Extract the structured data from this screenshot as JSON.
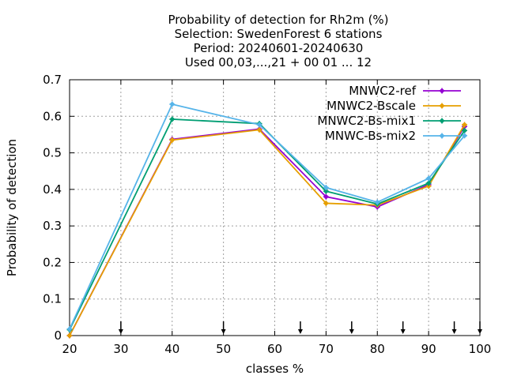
{
  "chart_data": {
    "type": "line",
    "title_lines": [
      "Probability of detection  for Rh2m (%)",
      "Selection: SwedenForest      6 stations",
      "Period: 20240601-20240630",
      "Used 00,03,...,21 + 00 01 ... 12"
    ],
    "xlabel": "classes %",
    "ylabel": "Probability of detection",
    "xlim": [
      20,
      100
    ],
    "ylim": [
      0,
      0.7
    ],
    "xticks": [
      20,
      30,
      40,
      50,
      60,
      70,
      80,
      90,
      100
    ],
    "yticks": [
      0,
      0.1,
      0.2,
      0.3,
      0.4,
      0.5,
      0.6,
      0.7
    ],
    "xtick_labels": [
      "20",
      "30",
      "40",
      "50",
      "60",
      "70",
      "80",
      "90",
      "100"
    ],
    "ytick_labels": [
      "0",
      "0.1",
      "0.2",
      "0.3",
      "0.4",
      "0.5",
      "0.6",
      "0.7"
    ],
    "grid": true,
    "legend_position": "top-right",
    "x": [
      20,
      40,
      57,
      70,
      80,
      90,
      97
    ],
    "series": [
      {
        "name": "MNWC2-ref",
        "color": "#9400d3",
        "values": [
          0.0,
          0.537,
          0.565,
          0.38,
          0.352,
          0.413,
          0.572
        ]
      },
      {
        "name": "MNWC2-Bscale",
        "color": "#e69f00",
        "values": [
          0.0,
          0.535,
          0.563,
          0.362,
          0.357,
          0.409,
          0.577
        ]
      },
      {
        "name": "MNWC2-Bs-mix1",
        "color": "#009e73",
        "values": [
          0.016,
          0.592,
          0.58,
          0.395,
          0.36,
          0.417,
          0.561
        ]
      },
      {
        "name": "MNWC-Bs-mix2",
        "color": "#56b4e9",
        "values": [
          0.018,
          0.633,
          0.577,
          0.405,
          0.365,
          0.43,
          0.547
        ]
      }
    ],
    "arrow_markers_x": [
      30,
      50,
      65,
      75,
      85,
      95,
      100
    ]
  }
}
